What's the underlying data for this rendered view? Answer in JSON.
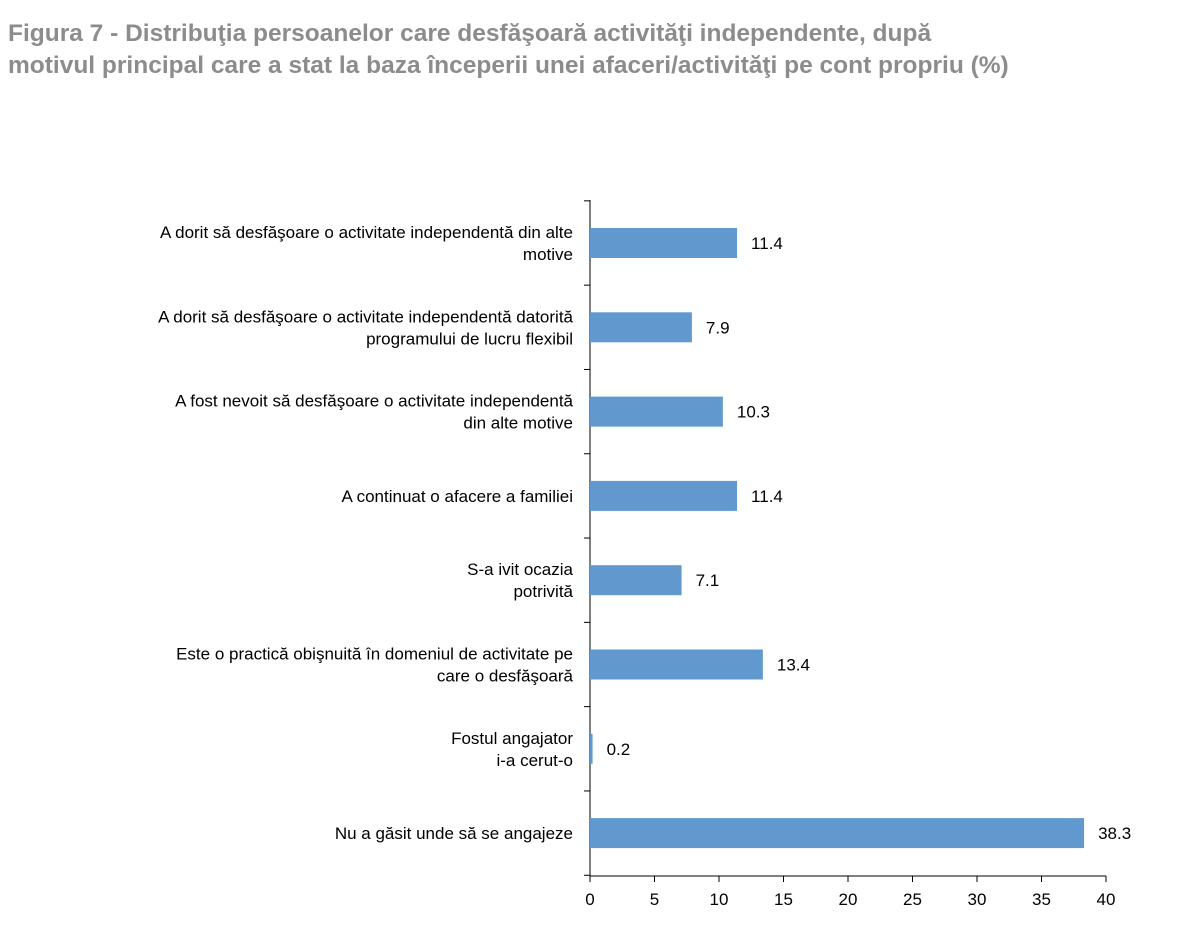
{
  "figure": {
    "title_line1": "Figura 7 - Distribuţia persoanelor care desfăşoară activităţi independente, după",
    "title_line2": "motivul principal care a stat la baza începerii unei afaceri/activităţi pe cont propriu (%)"
  },
  "chart_data": {
    "type": "bar",
    "orientation": "horizontal",
    "title": "Figura 7 - Distribuţia persoanelor care desfăşoară activităţi independente, după motivul principal care a stat la baza începerii unei afaceri/activităţi pe cont propriu (%)",
    "xlabel": "",
    "ylabel": "",
    "categories": [
      [
        "A dorit să desfăşoare o activitate independentă din alte",
        "motive"
      ],
      [
        "A dorit să desfăşoare o activitate independentă datorită",
        "programului de lucru flexibil"
      ],
      [
        "A fost nevoit să  desfăşoare o activitate independentă",
        "din alte motive"
      ],
      [
        "A continuat o afacere a familiei"
      ],
      [
        "S-a ivit ocazia",
        "potrivită"
      ],
      [
        "Este o practică obişnuită în domeniul de activitate pe",
        "care o desfăşoară"
      ],
      [
        "Fostul angajator",
        "i-a cerut-o"
      ],
      [
        "Nu a găsit unde să se angajeze"
      ]
    ],
    "values": [
      11.4,
      7.9,
      10.3,
      11.4,
      7.1,
      13.4,
      0.2,
      38.3
    ],
    "value_labels": [
      "11.4",
      "7.9",
      "10.3",
      "11.4",
      "7.1",
      "13.4",
      "0.2",
      "38.3"
    ],
    "xlim": [
      0,
      40
    ],
    "xticks": [
      "0",
      "5",
      "10",
      "15",
      "20",
      "25",
      "30",
      "35",
      "40"
    ],
    "grid": false,
    "legend": "none",
    "bar_color": "#6199ce"
  }
}
